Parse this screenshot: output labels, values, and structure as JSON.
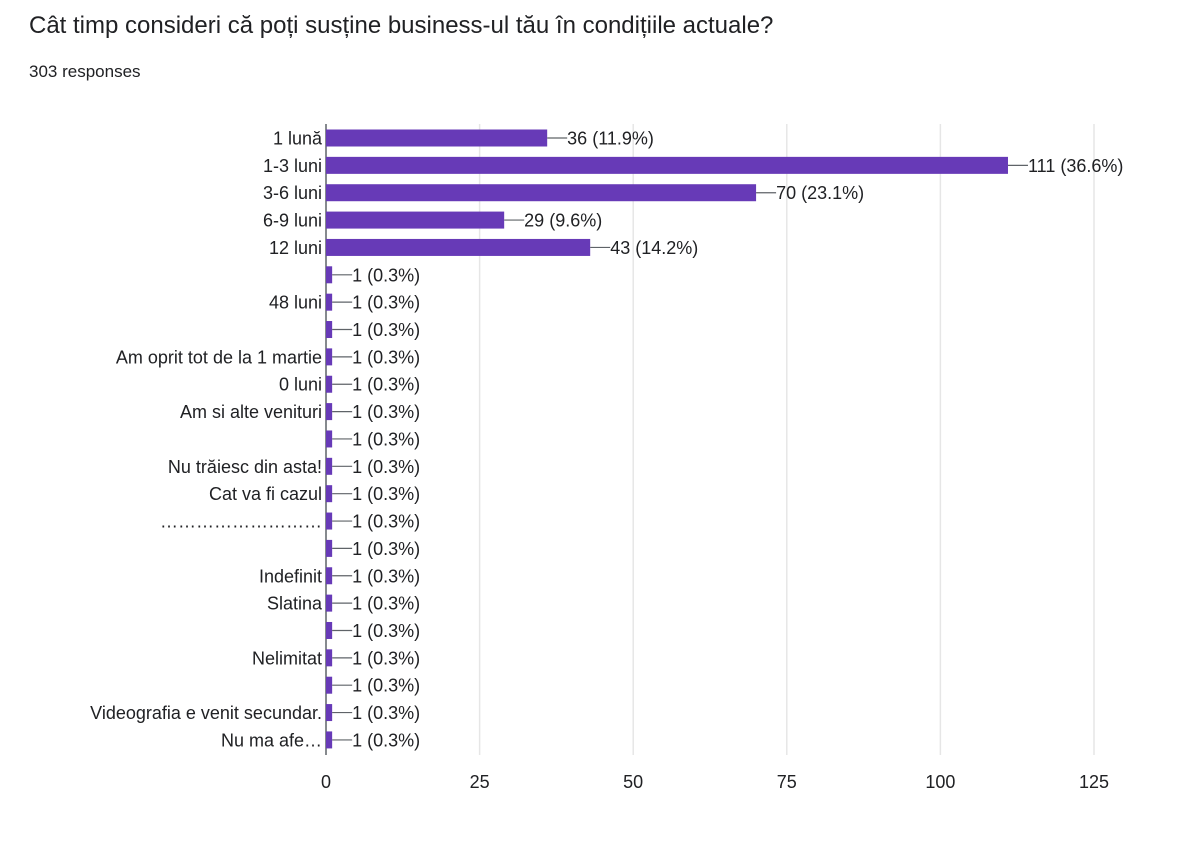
{
  "question": "Cât timp consideri că poți susține business-ul tău în condițiile actuale?",
  "responses_label": "303 responses",
  "colors": {
    "bar": "#673ab7",
    "grid": "#e6e6e6",
    "axis": "#5f6368",
    "text": "#202124"
  },
  "chart_data": {
    "type": "bar",
    "orientation": "horizontal",
    "title": "",
    "xlabel": "",
    "ylabel": "",
    "xlim": [
      0,
      125
    ],
    "xticks": [
      0,
      25,
      50,
      75,
      100,
      125
    ],
    "grid": true,
    "legend": "none",
    "categories": [
      "1 lună",
      "1-3 luni",
      "3-6 luni",
      "6-9 luni",
      "12 luni",
      "",
      "48 luni",
      "",
      "Am oprit tot de la 1 martie",
      "0 luni",
      "Am si alte venituri",
      "",
      "Nu trăiesc din asta!",
      "Cat va fi cazul",
      "………………………",
      "",
      "Indefinit",
      "Slatina",
      "",
      "Nelimitat",
      "",
      "Videografia e venit secundar.",
      "Nu ma afe…"
    ],
    "values": [
      36,
      111,
      70,
      29,
      43,
      1,
      1,
      1,
      1,
      1,
      1,
      1,
      1,
      1,
      1,
      1,
      1,
      1,
      1,
      1,
      1,
      1,
      1
    ],
    "data_labels": [
      "36 (11.9%)",
      "111 (36.6%)",
      "70 (23.1%)",
      "29 (9.6%)",
      "43 (14.2%)",
      "1 (0.3%)",
      "1 (0.3%)",
      "1 (0.3%)",
      "1 (0.3%)",
      "1 (0.3%)",
      "1 (0.3%)",
      "1 (0.3%)",
      "1 (0.3%)",
      "1 (0.3%)",
      "1 (0.3%)",
      "1 (0.3%)",
      "1 (0.3%)",
      "1 (0.3%)",
      "1 (0.3%)",
      "1 (0.3%)",
      "1 (0.3%)",
      "1 (0.3%)",
      "1 (0.3%)"
    ]
  }
}
